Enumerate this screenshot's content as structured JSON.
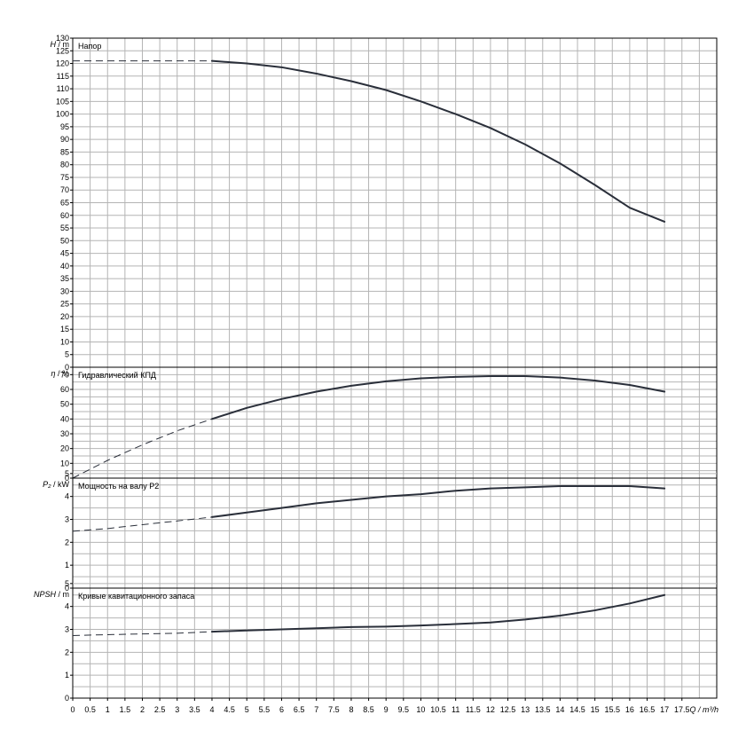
{
  "colors": {
    "grid": "#b4b4b4",
    "curve": "#2a2f3a",
    "frame": "#000000"
  },
  "chart_data": [
    {
      "type": "line",
      "title": "Напор",
      "ylabel": "H / m",
      "ylabel_parts": [
        "H",
        "/ m"
      ],
      "ylim": [
        0,
        130
      ],
      "ystep": 5,
      "ylabel_step": 5,
      "xlim": [
        0,
        18.5
      ],
      "x_dashed": [
        0,
        4
      ],
      "x": [
        4,
        5,
        6,
        7,
        8,
        9,
        10,
        11,
        12,
        13,
        14,
        15,
        16,
        17
      ],
      "series": [
        {
          "values": [
            121,
            120,
            118.5,
            116,
            113,
            109.5,
            105,
            100,
            94.5,
            88,
            80.5,
            72,
            63,
            57.5
          ]
        }
      ],
      "dashed_values": [
        121,
        121
      ]
    },
    {
      "type": "line",
      "title": "Гидравлический КПД",
      "ylabel": "η / %",
      "ylabel_parts": [
        "η",
        "/ %"
      ],
      "ylim": [
        0,
        75
      ],
      "ystep": 5,
      "ylabel_step": 10,
      "xlim": [
        0,
        18.5
      ],
      "x_dashed": [
        0,
        1,
        2,
        3,
        4
      ],
      "x": [
        4,
        5,
        6,
        7,
        8,
        9,
        10,
        11,
        12,
        13,
        14,
        15,
        16,
        17
      ],
      "series": [
        {
          "values": [
            40,
            47.5,
            53.5,
            58.5,
            62.5,
            65.5,
            67.5,
            68.5,
            69,
            69,
            68,
            66,
            63,
            58.5
          ]
        }
      ],
      "dashed_values": [
        0,
        12,
        22.5,
        32,
        40
      ]
    },
    {
      "type": "line",
      "title": "Мощность на валу P2",
      "ylabel": "P₂ / kW",
      "ylabel_parts": [
        "P₂",
        "/ kW"
      ],
      "ylim": [
        0,
        4.8
      ],
      "ystep": 0.5,
      "ylabel_step": 1,
      "xlim": [
        0,
        18.5
      ],
      "x_dashed": [
        0,
        1,
        2,
        3,
        4
      ],
      "x": [
        4,
        5,
        6,
        7,
        8,
        9,
        10,
        11,
        12,
        13,
        14,
        15,
        16,
        17
      ],
      "series": [
        {
          "values": [
            3.1,
            3.3,
            3.5,
            3.7,
            3.85,
            4.0,
            4.1,
            4.25,
            4.35,
            4.4,
            4.45,
            4.45,
            4.45,
            4.35
          ]
        }
      ],
      "dashed_values": [
        2.48,
        2.6,
        2.77,
        2.93,
        3.1
      ]
    },
    {
      "type": "line",
      "title": "Кривые кавитационного запаса",
      "ylabel": "NPSH / m",
      "ylabel_parts": [
        "NPSH",
        "/ m"
      ],
      "ylim": [
        0,
        4.8
      ],
      "ystep": 0.5,
      "ylabel_step": 1,
      "xlim": [
        0,
        18.5
      ],
      "x_dashed": [
        0,
        1,
        2,
        3,
        4
      ],
      "x": [
        4,
        5,
        6,
        7,
        8,
        9,
        10,
        11,
        12,
        13,
        14,
        15,
        16,
        17
      ],
      "series": [
        {
          "values": [
            2.9,
            2.95,
            3.0,
            3.05,
            3.1,
            3.12,
            3.17,
            3.23,
            3.3,
            3.43,
            3.6,
            3.83,
            4.13,
            4.5
          ]
        }
      ],
      "dashed_values": [
        2.73,
        2.77,
        2.8,
        2.83,
        2.9
      ]
    }
  ],
  "x_axis": {
    "ticks": [
      "0",
      "0.5",
      "1",
      "1.5",
      "2",
      "2.5",
      "3",
      "3.5",
      "4",
      "4.5",
      "5",
      "5.5",
      "6",
      "6.5",
      "7",
      "7.5",
      "8",
      "8.5",
      "9",
      "9.5",
      "10",
      "10.5",
      "11",
      "11.5",
      "12",
      "12.5",
      "13",
      "13.5",
      "14",
      "14.5",
      "15",
      "15.5",
      "16",
      "16.5",
      "17",
      "17.5"
    ],
    "label": "Q / m³/h"
  }
}
